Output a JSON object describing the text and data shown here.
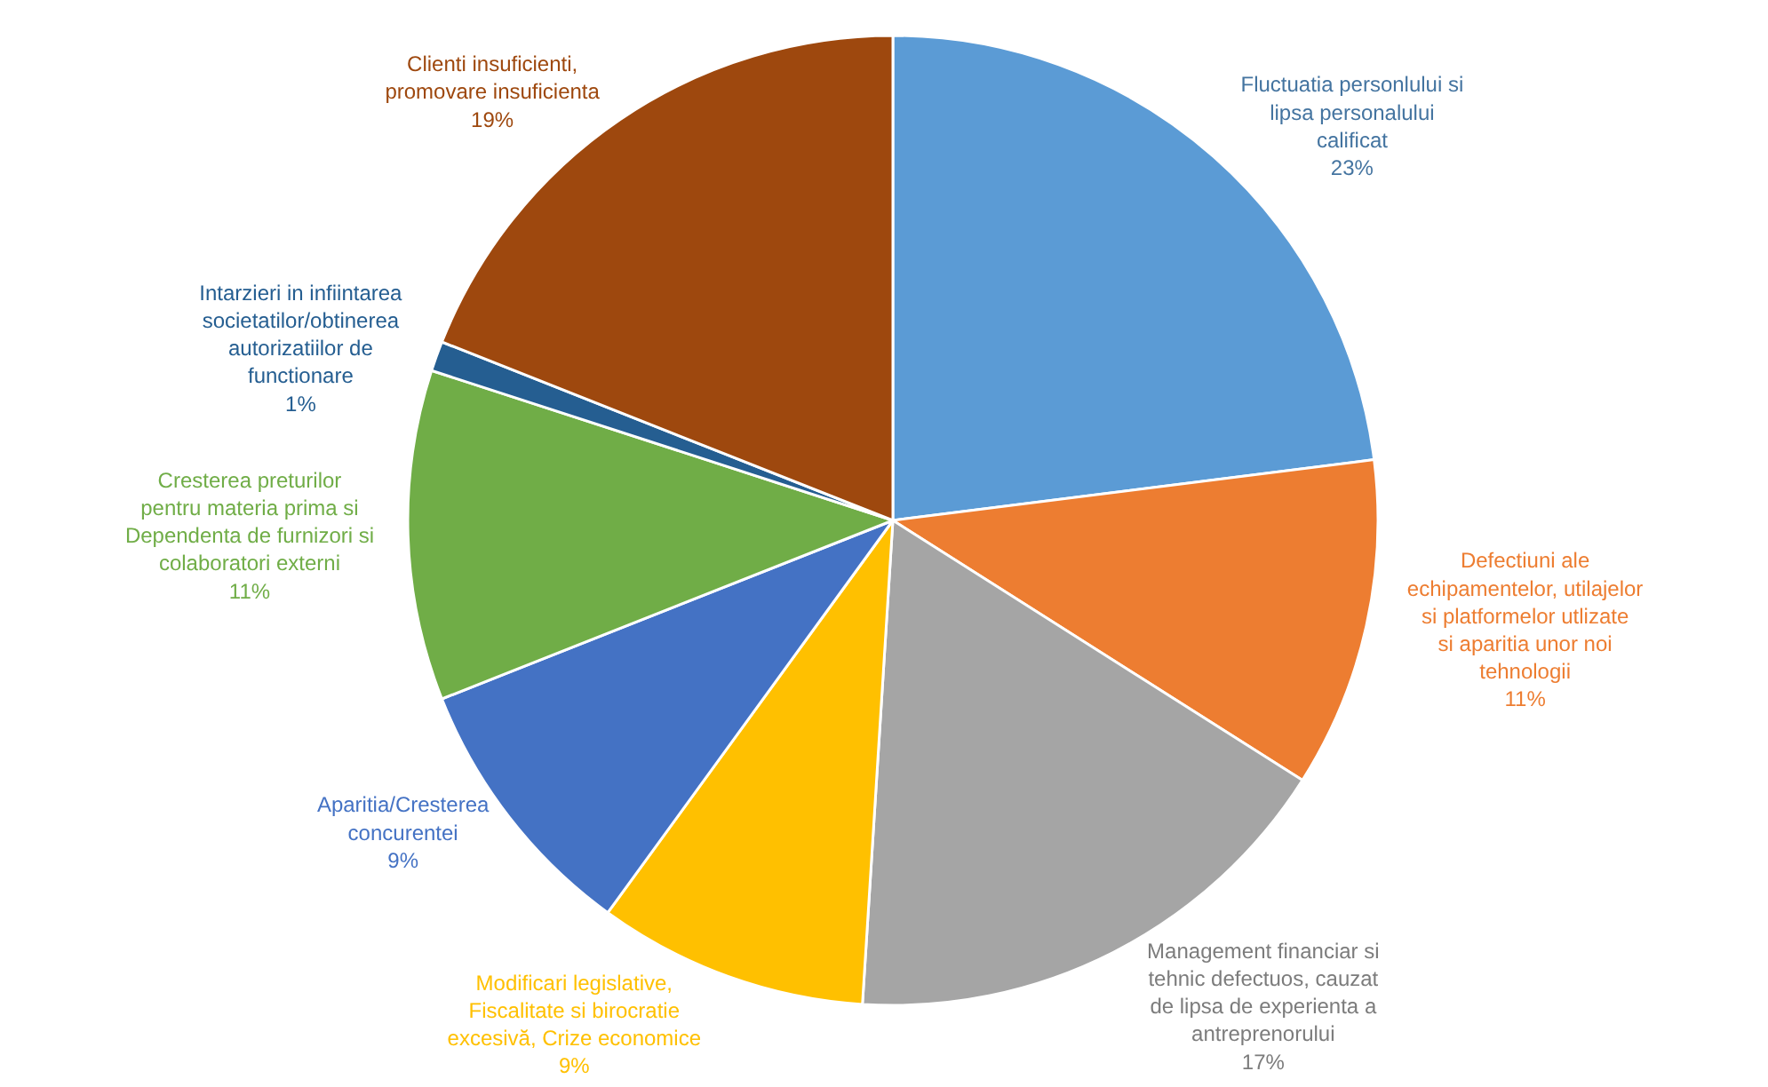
{
  "chart_data": {
    "type": "pie",
    "categories": [
      "Fluctuatia personlului si lipsa personalului calificat",
      "Defectiuni ale echipamentelor, utilajelor si platformelor utlizate si aparitia unor noi tehnologii",
      "Management financiar si tehnic defectuos, cauzat de lipsa de experienta a antreprenorului",
      "Modificari legislative, Fiscalitate si birocratie excesivă, Crize economice",
      "Aparitia/Cresterea concurentei",
      "Cresterea preturilor pentru materia prima si Dependenta de furnizori si colaboratori externi",
      "Intarzieri in infiintarea societatilor/obtinerea autorizatiilor de functionare",
      "Clienti insuficienti, promovare insuficienta"
    ],
    "values": [
      23,
      11,
      17,
      9,
      9,
      11,
      1,
      19
    ],
    "value_labels": [
      "23%",
      "11%",
      "17%",
      "9%",
      "9%",
      "11%",
      "1%",
      "19%"
    ],
    "colors": [
      "#5b9bd5",
      "#ed7d31",
      "#a5a5a5",
      "#ffc000",
      "#4472c4",
      "#70ad47",
      "#255e91",
      "#9e480e"
    ],
    "legend": false
  }
}
